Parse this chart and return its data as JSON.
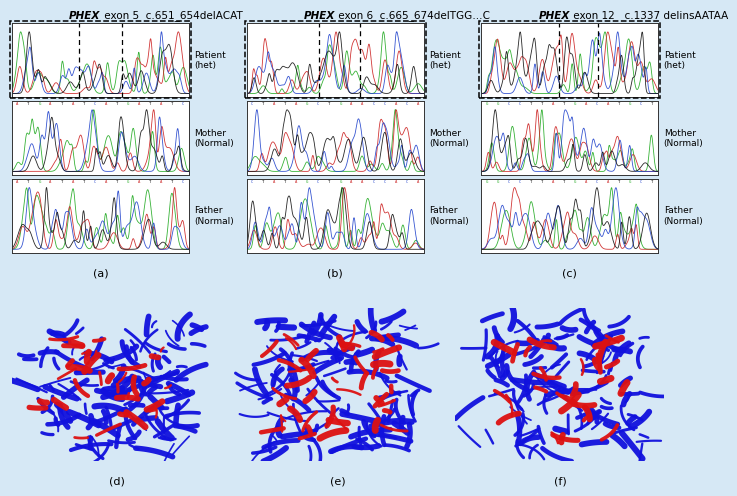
{
  "bg_color": "#d6e8f5",
  "title_a": "PHEX exon 5  c.651_654delACAT",
  "title_b": "PHEX exon 6  c.665_674delTGG…C",
  "title_c": "PHEX exon 12   c.1337 delinsAATAA",
  "labels_right": [
    "Patient\n(het)",
    "Mother\n(Normal)",
    "Father\n(Normal)"
  ],
  "panel_labels_top": [
    "(a)",
    "(b)",
    "(c)"
  ],
  "panel_labels_bot": [
    "(d)",
    "(e)",
    "(f)"
  ],
  "chrom_bg": "#ffffff",
  "protein_bg": "#000000",
  "panel_border": "#000000",
  "label_fontsize": 6.5,
  "title_fontsize": 7.5,
  "seq_letters_a": [
    "A",
    "T",
    "G",
    "A",
    "T",
    "A",
    "T",
    "C",
    "A",
    "T",
    "G",
    "A",
    "T",
    "A",
    "T",
    "C"
  ],
  "seq_letters_b": [
    "C",
    "T",
    "A",
    "T",
    "A",
    "G",
    "C",
    "T",
    "G",
    "A",
    "A",
    "C",
    "C",
    "A",
    "C",
    "A"
  ],
  "seq_letters_c": [
    "G",
    "G",
    "C",
    "C",
    "T",
    "T",
    "A",
    "T",
    "G",
    "A",
    "C",
    "A",
    "T",
    "G",
    "C",
    "T"
  ]
}
